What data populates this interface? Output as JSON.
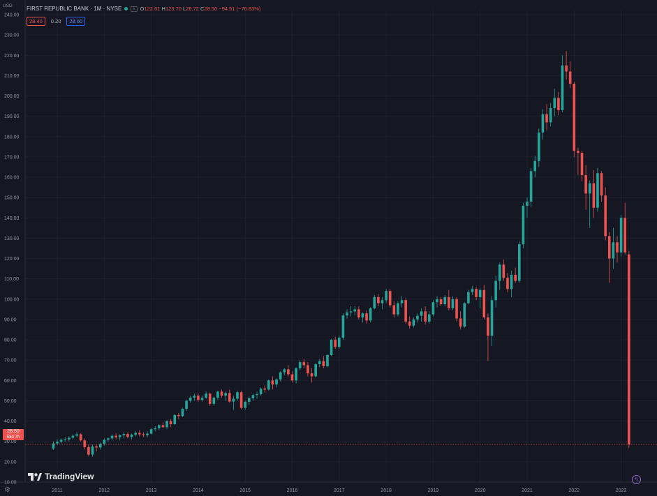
{
  "header": {
    "title": "FIRST REPUBLIC BANK · 1M · NYSE",
    "badge": "≥",
    "open_label": "O",
    "open": "122.01",
    "high_label": "H",
    "high": "123.70",
    "low_label": "L",
    "low": "26.72",
    "close_label": "C",
    "close": "28.50",
    "change": "−94.51 (−76.83%)",
    "bid": "28.40",
    "spread": "0.20",
    "ask": "28.60"
  },
  "axis": {
    "currency": "USD",
    "last_price": "28.50",
    "countdown": "58d 7h"
  },
  "branding": {
    "logo_text": "TradingView"
  },
  "colors": {
    "background": "#151823",
    "up": "#26a69a",
    "down": "#ef5350",
    "grid": "#222633",
    "axis_text": "#9598a1"
  },
  "icons": {
    "settings": "gear-icon",
    "indicator": "flash-icon",
    "logo": "tradingview-logo-icon"
  },
  "chart_data": {
    "type": "candlestick",
    "title": "FIRST REPUBLIC BANK · 1M · NYSE",
    "ylim": [
      10,
      240
    ],
    "y_ticks": [
      10,
      20,
      30,
      40,
      50,
      60,
      70,
      80,
      90,
      100,
      110,
      120,
      130,
      140,
      150,
      160,
      170,
      180,
      190,
      200,
      210,
      220,
      230,
      240
    ],
    "x_ticks": [
      "2011",
      "2012",
      "2013",
      "2014",
      "2015",
      "2016",
      "2017",
      "2018",
      "2019",
      "2020",
      "2021",
      "2022",
      "2023"
    ],
    "x_ticks_year": [
      2011,
      2012,
      2013,
      2014,
      2015,
      2016,
      2017,
      2018,
      2019,
      2020,
      2021,
      2022,
      2023
    ],
    "grid": true,
    "last_price_line": 28.5,
    "candles": [
      {
        "t": "2010-12",
        "o": 26.5,
        "h": 30.0,
        "l": 25.8,
        "c": 29.0
      },
      {
        "t": "2011-01",
        "o": 29.0,
        "h": 31.0,
        "l": 28.2,
        "c": 29.8
      },
      {
        "t": "2011-02",
        "o": 29.8,
        "h": 31.5,
        "l": 29.0,
        "c": 30.8
      },
      {
        "t": "2011-03",
        "o": 30.8,
        "h": 32.0,
        "l": 29.8,
        "c": 30.9
      },
      {
        "t": "2011-04",
        "o": 30.9,
        "h": 32.5,
        "l": 30.0,
        "c": 31.8
      },
      {
        "t": "2011-05",
        "o": 31.8,
        "h": 33.5,
        "l": 31.0,
        "c": 32.8
      },
      {
        "t": "2011-06",
        "o": 32.8,
        "h": 34.5,
        "l": 32.0,
        "c": 33.5
      },
      {
        "t": "2011-07",
        "o": 33.5,
        "h": 34.0,
        "l": 30.0,
        "c": 30.5
      },
      {
        "t": "2011-08",
        "o": 30.5,
        "h": 31.5,
        "l": 26.0,
        "c": 27.2
      },
      {
        "t": "2011-09",
        "o": 27.2,
        "h": 28.5,
        "l": 22.8,
        "c": 23.5
      },
      {
        "t": "2011-10",
        "o": 23.5,
        "h": 28.5,
        "l": 22.5,
        "c": 27.5
      },
      {
        "t": "2011-11",
        "o": 27.5,
        "h": 28.5,
        "l": 25.0,
        "c": 27.0
      },
      {
        "t": "2011-12",
        "o": 27.0,
        "h": 29.5,
        "l": 26.0,
        "c": 28.8
      },
      {
        "t": "2012-01",
        "o": 28.8,
        "h": 31.5,
        "l": 28.0,
        "c": 30.8
      },
      {
        "t": "2012-02",
        "o": 30.8,
        "h": 32.0,
        "l": 29.8,
        "c": 31.5
      },
      {
        "t": "2012-03",
        "o": 31.5,
        "h": 33.5,
        "l": 30.5,
        "c": 32.8
      },
      {
        "t": "2012-04",
        "o": 32.8,
        "h": 34.0,
        "l": 31.0,
        "c": 32.0
      },
      {
        "t": "2012-05",
        "o": 32.0,
        "h": 33.5,
        "l": 30.5,
        "c": 33.0
      },
      {
        "t": "2012-06",
        "o": 33.0,
        "h": 34.5,
        "l": 31.5,
        "c": 33.6
      },
      {
        "t": "2012-07",
        "o": 33.6,
        "h": 34.5,
        "l": 31.5,
        "c": 32.2
      },
      {
        "t": "2012-08",
        "o": 32.2,
        "h": 33.8,
        "l": 31.0,
        "c": 33.3
      },
      {
        "t": "2012-09",
        "o": 33.3,
        "h": 35.0,
        "l": 32.5,
        "c": 34.2
      },
      {
        "t": "2012-10",
        "o": 34.2,
        "h": 35.5,
        "l": 32.5,
        "c": 33.5
      },
      {
        "t": "2012-11",
        "o": 33.5,
        "h": 34.5,
        "l": 32.0,
        "c": 33.0
      },
      {
        "t": "2012-12",
        "o": 33.0,
        "h": 35.0,
        "l": 32.0,
        "c": 33.8
      },
      {
        "t": "2013-01",
        "o": 33.8,
        "h": 36.5,
        "l": 33.5,
        "c": 36.0
      },
      {
        "t": "2013-02",
        "o": 36.0,
        "h": 37.5,
        "l": 35.0,
        "c": 36.5
      },
      {
        "t": "2013-03",
        "o": 36.5,
        "h": 38.5,
        "l": 35.5,
        "c": 38.0
      },
      {
        "t": "2013-04",
        "o": 38.0,
        "h": 39.5,
        "l": 36.5,
        "c": 37.0
      },
      {
        "t": "2013-05",
        "o": 37.0,
        "h": 40.5,
        "l": 36.0,
        "c": 40.0
      },
      {
        "t": "2013-06",
        "o": 40.0,
        "h": 41.0,
        "l": 37.0,
        "c": 38.5
      },
      {
        "t": "2013-07",
        "o": 38.5,
        "h": 43.5,
        "l": 38.0,
        "c": 43.0
      },
      {
        "t": "2013-08",
        "o": 43.0,
        "h": 44.0,
        "l": 41.0,
        "c": 42.5
      },
      {
        "t": "2013-09",
        "o": 42.5,
        "h": 46.5,
        "l": 42.0,
        "c": 46.0
      },
      {
        "t": "2013-10",
        "o": 46.0,
        "h": 50.5,
        "l": 45.0,
        "c": 50.0
      },
      {
        "t": "2013-11",
        "o": 50.0,
        "h": 52.5,
        "l": 49.0,
        "c": 51.5
      },
      {
        "t": "2013-12",
        "o": 51.5,
        "h": 53.5,
        "l": 50.0,
        "c": 52.5
      },
      {
        "t": "2014-01",
        "o": 52.5,
        "h": 53.5,
        "l": 49.5,
        "c": 50.5
      },
      {
        "t": "2014-02",
        "o": 50.5,
        "h": 52.5,
        "l": 49.5,
        "c": 51.5
      },
      {
        "t": "2014-03",
        "o": 51.5,
        "h": 54.5,
        "l": 51.0,
        "c": 53.5
      },
      {
        "t": "2014-04",
        "o": 53.5,
        "h": 54.0,
        "l": 47.5,
        "c": 48.5
      },
      {
        "t": "2014-05",
        "o": 48.5,
        "h": 52.0,
        "l": 47.5,
        "c": 51.5
      },
      {
        "t": "2014-06",
        "o": 51.5,
        "h": 55.0,
        "l": 50.5,
        "c": 54.5
      },
      {
        "t": "2014-07",
        "o": 54.5,
        "h": 55.5,
        "l": 51.5,
        "c": 52.5
      },
      {
        "t": "2014-08",
        "o": 52.5,
        "h": 54.5,
        "l": 50.0,
        "c": 53.8
      },
      {
        "t": "2014-09",
        "o": 53.8,
        "h": 55.5,
        "l": 49.0,
        "c": 49.6
      },
      {
        "t": "2014-10",
        "o": 49.6,
        "h": 52.5,
        "l": 45.5,
        "c": 51.0
      },
      {
        "t": "2014-11",
        "o": 51.0,
        "h": 55.0,
        "l": 50.0,
        "c": 54.2
      },
      {
        "t": "2014-12",
        "o": 54.2,
        "h": 55.0,
        "l": 45.8,
        "c": 46.5
      },
      {
        "t": "2015-01",
        "o": 46.5,
        "h": 50.0,
        "l": 45.5,
        "c": 49.5
      },
      {
        "t": "2015-02",
        "o": 49.5,
        "h": 52.0,
        "l": 48.0,
        "c": 51.2
      },
      {
        "t": "2015-03",
        "o": 51.2,
        "h": 53.5,
        "l": 50.0,
        "c": 52.8
      },
      {
        "t": "2015-04",
        "o": 52.8,
        "h": 54.5,
        "l": 51.0,
        "c": 53.2
      },
      {
        "t": "2015-05",
        "o": 53.2,
        "h": 56.5,
        "l": 52.5,
        "c": 56.0
      },
      {
        "t": "2015-06",
        "o": 56.0,
        "h": 57.5,
        "l": 54.0,
        "c": 55.5
      },
      {
        "t": "2015-07",
        "o": 55.5,
        "h": 60.5,
        "l": 55.0,
        "c": 60.0
      },
      {
        "t": "2015-08",
        "o": 60.0,
        "h": 62.0,
        "l": 55.5,
        "c": 58.0
      },
      {
        "t": "2015-09",
        "o": 58.0,
        "h": 61.0,
        "l": 56.5,
        "c": 60.5
      },
      {
        "t": "2015-10",
        "o": 60.5,
        "h": 64.5,
        "l": 59.5,
        "c": 64.0
      },
      {
        "t": "2015-11",
        "o": 64.0,
        "h": 66.0,
        "l": 62.5,
        "c": 65.5
      },
      {
        "t": "2015-12",
        "o": 65.5,
        "h": 67.5,
        "l": 62.0,
        "c": 63.0
      },
      {
        "t": "2016-01",
        "o": 63.0,
        "h": 64.5,
        "l": 59.0,
        "c": 60.0
      },
      {
        "t": "2016-02",
        "o": 60.0,
        "h": 66.5,
        "l": 58.5,
        "c": 66.0
      },
      {
        "t": "2016-03",
        "o": 66.0,
        "h": 70.0,
        "l": 65.0,
        "c": 69.0
      },
      {
        "t": "2016-04",
        "o": 69.0,
        "h": 70.5,
        "l": 66.0,
        "c": 67.5
      },
      {
        "t": "2016-05",
        "o": 67.5,
        "h": 69.0,
        "l": 62.0,
        "c": 63.5
      },
      {
        "t": "2016-06",
        "o": 63.5,
        "h": 66.0,
        "l": 59.0,
        "c": 62.0
      },
      {
        "t": "2016-07",
        "o": 62.0,
        "h": 68.5,
        "l": 61.5,
        "c": 68.0
      },
      {
        "t": "2016-08",
        "o": 68.0,
        "h": 70.5,
        "l": 66.5,
        "c": 69.5
      },
      {
        "t": "2016-09",
        "o": 69.5,
        "h": 72.0,
        "l": 66.0,
        "c": 67.0
      },
      {
        "t": "2016-10",
        "o": 67.0,
        "h": 73.0,
        "l": 66.5,
        "c": 72.5
      },
      {
        "t": "2016-11",
        "o": 72.5,
        "h": 80.5,
        "l": 72.0,
        "c": 80.0
      },
      {
        "t": "2016-12",
        "o": 80.0,
        "h": 81.5,
        "l": 75.5,
        "c": 76.5
      },
      {
        "t": "2017-01",
        "o": 76.5,
        "h": 82.0,
        "l": 75.5,
        "c": 81.0
      },
      {
        "t": "2017-02",
        "o": 81.0,
        "h": 93.0,
        "l": 80.0,
        "c": 92.0
      },
      {
        "t": "2017-03",
        "o": 92.0,
        "h": 95.0,
        "l": 90.5,
        "c": 93.5
      },
      {
        "t": "2017-04",
        "o": 93.5,
        "h": 96.5,
        "l": 91.5,
        "c": 94.0
      },
      {
        "t": "2017-05",
        "o": 94.0,
        "h": 96.5,
        "l": 92.0,
        "c": 95.0
      },
      {
        "t": "2017-06",
        "o": 95.0,
        "h": 96.5,
        "l": 90.0,
        "c": 91.0
      },
      {
        "t": "2017-07",
        "o": 91.0,
        "h": 93.5,
        "l": 88.5,
        "c": 93.0
      },
      {
        "t": "2017-08",
        "o": 93.0,
        "h": 94.5,
        "l": 88.0,
        "c": 89.5
      },
      {
        "t": "2017-09",
        "o": 89.5,
        "h": 96.0,
        "l": 88.5,
        "c": 95.5
      },
      {
        "t": "2017-10",
        "o": 95.5,
        "h": 102.0,
        "l": 95.0,
        "c": 101.0
      },
      {
        "t": "2017-11",
        "o": 101.0,
        "h": 102.5,
        "l": 96.5,
        "c": 98.0
      },
      {
        "t": "2017-12",
        "o": 98.0,
        "h": 101.0,
        "l": 95.0,
        "c": 99.5
      },
      {
        "t": "2018-01",
        "o": 99.5,
        "h": 105.0,
        "l": 98.0,
        "c": 104.0
      },
      {
        "t": "2018-02",
        "o": 104.0,
        "h": 105.0,
        "l": 96.0,
        "c": 97.0
      },
      {
        "t": "2018-03",
        "o": 97.0,
        "h": 99.0,
        "l": 91.0,
        "c": 92.5
      },
      {
        "t": "2018-04",
        "o": 92.5,
        "h": 99.0,
        "l": 91.5,
        "c": 98.0
      },
      {
        "t": "2018-05",
        "o": 98.0,
        "h": 101.5,
        "l": 96.0,
        "c": 99.5
      },
      {
        "t": "2018-06",
        "o": 99.5,
        "h": 100.5,
        "l": 88.0,
        "c": 89.0
      },
      {
        "t": "2018-07",
        "o": 89.0,
        "h": 91.5,
        "l": 85.5,
        "c": 87.0
      },
      {
        "t": "2018-08",
        "o": 87.0,
        "h": 91.0,
        "l": 86.0,
        "c": 90.0
      },
      {
        "t": "2018-09",
        "o": 90.0,
        "h": 93.0,
        "l": 88.5,
        "c": 91.8
      },
      {
        "t": "2018-10",
        "o": 91.8,
        "h": 95.5,
        "l": 89.0,
        "c": 94.0
      },
      {
        "t": "2018-11",
        "o": 94.0,
        "h": 96.5,
        "l": 87.5,
        "c": 89.0
      },
      {
        "t": "2018-12",
        "o": 89.0,
        "h": 94.0,
        "l": 88.0,
        "c": 92.5
      },
      {
        "t": "2019-01",
        "o": 92.5,
        "h": 99.5,
        "l": 91.5,
        "c": 98.5
      },
      {
        "t": "2019-02",
        "o": 98.5,
        "h": 101.5,
        "l": 96.0,
        "c": 100.0
      },
      {
        "t": "2019-03",
        "o": 100.0,
        "h": 101.0,
        "l": 96.5,
        "c": 97.5
      },
      {
        "t": "2019-04",
        "o": 97.5,
        "h": 102.0,
        "l": 96.5,
        "c": 101.0
      },
      {
        "t": "2019-05",
        "o": 101.0,
        "h": 104.5,
        "l": 94.5,
        "c": 95.5
      },
      {
        "t": "2019-06",
        "o": 95.5,
        "h": 101.5,
        "l": 94.5,
        "c": 100.0
      },
      {
        "t": "2019-07",
        "o": 100.0,
        "h": 101.0,
        "l": 89.0,
        "c": 90.5
      },
      {
        "t": "2019-08",
        "o": 90.5,
        "h": 94.0,
        "l": 85.0,
        "c": 86.5
      },
      {
        "t": "2019-09",
        "o": 86.5,
        "h": 98.5,
        "l": 86.0,
        "c": 98.0
      },
      {
        "t": "2019-10",
        "o": 98.0,
        "h": 104.5,
        "l": 97.5,
        "c": 103.5
      },
      {
        "t": "2019-11",
        "o": 103.5,
        "h": 106.5,
        "l": 102.0,
        "c": 105.0
      },
      {
        "t": "2019-12",
        "o": 105.0,
        "h": 106.0,
        "l": 99.5,
        "c": 101.0
      },
      {
        "t": "2020-01",
        "o": 101.0,
        "h": 105.5,
        "l": 95.5,
        "c": 104.5
      },
      {
        "t": "2020-02",
        "o": 104.5,
        "h": 107.0,
        "l": 90.0,
        "c": 91.0
      },
      {
        "t": "2020-03",
        "o": 91.0,
        "h": 93.0,
        "l": 69.5,
        "c": 82.0
      },
      {
        "t": "2020-04",
        "o": 82.0,
        "h": 101.5,
        "l": 77.0,
        "c": 99.5
      },
      {
        "t": "2020-05",
        "o": 99.5,
        "h": 111.5,
        "l": 96.0,
        "c": 109.0
      },
      {
        "t": "2020-06",
        "o": 109.0,
        "h": 118.0,
        "l": 104.5,
        "c": 117.0
      },
      {
        "t": "2020-07",
        "o": 117.0,
        "h": 119.5,
        "l": 109.0,
        "c": 110.5
      },
      {
        "t": "2020-08",
        "o": 110.5,
        "h": 113.0,
        "l": 103.5,
        "c": 105.0
      },
      {
        "t": "2020-09",
        "o": 105.0,
        "h": 114.0,
        "l": 101.0,
        "c": 112.0
      },
      {
        "t": "2020-10",
        "o": 112.0,
        "h": 115.5,
        "l": 108.0,
        "c": 109.0
      },
      {
        "t": "2020-11",
        "o": 109.0,
        "h": 128.5,
        "l": 108.0,
        "c": 127.0
      },
      {
        "t": "2020-12",
        "o": 127.0,
        "h": 147.5,
        "l": 125.0,
        "c": 146.0
      },
      {
        "t": "2021-01",
        "o": 146.0,
        "h": 150.0,
        "l": 140.0,
        "c": 148.0
      },
      {
        "t": "2021-02",
        "o": 148.0,
        "h": 164.5,
        "l": 145.5,
        "c": 163.0
      },
      {
        "t": "2021-03",
        "o": 163.0,
        "h": 170.5,
        "l": 160.0,
        "c": 168.0
      },
      {
        "t": "2021-04",
        "o": 168.0,
        "h": 184.0,
        "l": 165.0,
        "c": 182.0
      },
      {
        "t": "2021-05",
        "o": 182.0,
        "h": 193.5,
        "l": 178.5,
        "c": 191.0
      },
      {
        "t": "2021-06",
        "o": 191.0,
        "h": 196.0,
        "l": 183.0,
        "c": 187.0
      },
      {
        "t": "2021-07",
        "o": 187.0,
        "h": 196.5,
        "l": 185.0,
        "c": 194.0
      },
      {
        "t": "2021-08",
        "o": 194.0,
        "h": 203.5,
        "l": 190.0,
        "c": 199.0
      },
      {
        "t": "2021-09",
        "o": 199.0,
        "h": 202.0,
        "l": 190.5,
        "c": 193.0
      },
      {
        "t": "2021-10",
        "o": 193.0,
        "h": 220.0,
        "l": 192.0,
        "c": 215.0
      },
      {
        "t": "2021-11",
        "o": 215.0,
        "h": 222.0,
        "l": 208.0,
        "c": 212.0
      },
      {
        "t": "2021-12",
        "o": 212.0,
        "h": 217.0,
        "l": 204.0,
        "c": 206.0
      },
      {
        "t": "2022-01",
        "o": 206.0,
        "h": 207.0,
        "l": 170.0,
        "c": 173.0
      },
      {
        "t": "2022-02",
        "o": 173.0,
        "h": 174.5,
        "l": 161.0,
        "c": 172.0
      },
      {
        "t": "2022-03",
        "o": 172.0,
        "h": 173.0,
        "l": 158.0,
        "c": 161.0
      },
      {
        "t": "2022-04",
        "o": 161.0,
        "h": 166.0,
        "l": 144.0,
        "c": 152.0
      },
      {
        "t": "2022-05",
        "o": 152.0,
        "h": 158.5,
        "l": 135.0,
        "c": 157.0
      },
      {
        "t": "2022-06",
        "o": 157.0,
        "h": 163.5,
        "l": 140.0,
        "c": 145.0
      },
      {
        "t": "2022-07",
        "o": 145.0,
        "h": 164.5,
        "l": 143.0,
        "c": 162.0
      },
      {
        "t": "2022-08",
        "o": 162.0,
        "h": 163.0,
        "l": 148.0,
        "c": 151.0
      },
      {
        "t": "2022-09",
        "o": 151.0,
        "h": 155.0,
        "l": 129.0,
        "c": 131.0
      },
      {
        "t": "2022-10",
        "o": 131.0,
        "h": 133.0,
        "l": 108.0,
        "c": 120.0
      },
      {
        "t": "2022-11",
        "o": 120.0,
        "h": 135.0,
        "l": 115.0,
        "c": 128.0
      },
      {
        "t": "2022-12",
        "o": 128.0,
        "h": 131.0,
        "l": 118.0,
        "c": 123.0
      },
      {
        "t": "2023-01",
        "o": 123.0,
        "h": 141.5,
        "l": 121.0,
        "c": 140.0
      },
      {
        "t": "2023-02",
        "o": 140.0,
        "h": 147.5,
        "l": 122.0,
        "c": 123.0
      },
      {
        "t": "2023-03",
        "o": 122.01,
        "h": 123.7,
        "l": 26.72,
        "c": 28.5
      }
    ]
  }
}
